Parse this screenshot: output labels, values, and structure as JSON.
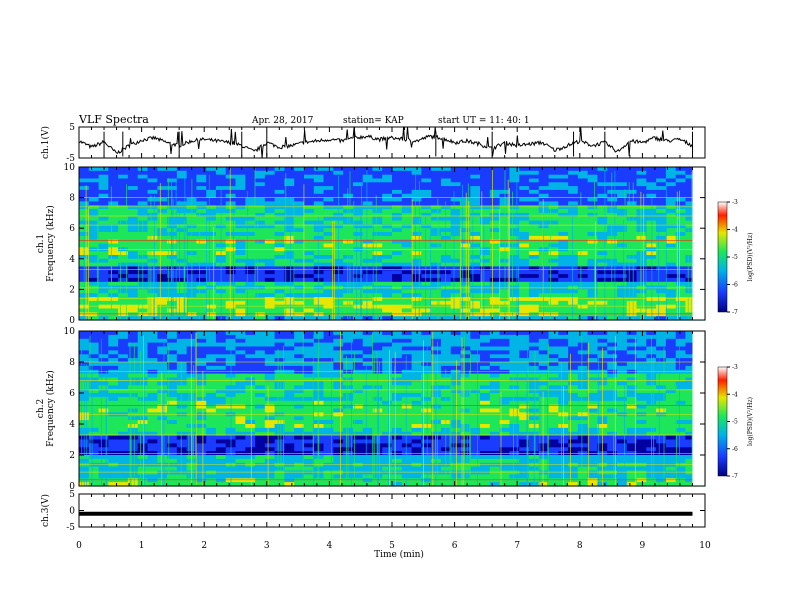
{
  "header": {
    "title": "VLF Spectra",
    "date": "Apr. 28, 2017",
    "station": "station= KAP",
    "start": "start UT = 11: 40: 1"
  },
  "chart_data": [
    {
      "type": "line",
      "panel": "ch1-waveform",
      "ylabel": "ch.1(V)",
      "ylim": [
        -5,
        5
      ],
      "yticks": [
        "5",
        "-5"
      ],
      "xlim": [
        0,
        10
      ],
      "x": [
        0.0,
        0.2,
        0.4,
        0.6,
        0.8,
        1.0,
        1.2,
        1.4,
        1.6,
        1.8,
        2.0,
        2.2,
        2.4,
        2.6,
        2.8,
        3.0,
        3.2,
        3.4,
        3.6,
        3.8,
        4.0,
        4.2,
        4.4,
        4.6,
        4.8,
        5.0,
        5.2,
        5.4,
        5.6,
        5.8,
        6.0,
        6.2,
        6.4,
        6.6,
        6.8,
        7.0,
        7.2,
        7.4,
        7.6,
        7.8,
        8.0,
        8.2,
        8.4,
        8.6,
        8.8,
        9.0,
        9.2,
        9.4,
        9.6,
        9.8
      ],
      "y": [
        0.5,
        -1.5,
        0.2,
        -3.5,
        -1.0,
        0.8,
        1.5,
        0.0,
        -1.0,
        0.5,
        1.0,
        0.5,
        0.0,
        -1.0,
        -3.0,
        0.0,
        -1.5,
        -1.0,
        0.0,
        0.5,
        1.0,
        0.5,
        1.5,
        2.0,
        1.0,
        1.5,
        1.0,
        0.5,
        2.0,
        1.5,
        0.0,
        0.5,
        -0.5,
        -2.0,
        0.0,
        -1.0,
        -0.5,
        0.0,
        -2.5,
        -1.0,
        0.5,
        -1.0,
        0.0,
        -3.0,
        0.5,
        0.0,
        1.5,
        0.5,
        1.0,
        -1.0
      ]
    },
    {
      "type": "heatmap",
      "panel": "ch1-spectrogram",
      "ylabel": "ch.1\nFrequency (kHz)",
      "ylim": [
        0,
        10
      ],
      "yticks": [
        "0",
        "2",
        "4",
        "6",
        "8",
        "10"
      ],
      "xlim": [
        0,
        10
      ],
      "colorbar": {
        "label": "log(PSD)(V²/Hz)",
        "range": [
          -7,
          -3
        ],
        "ticks": [
          "-3",
          "-4",
          "-5",
          "-6",
          "-7"
        ]
      }
    },
    {
      "type": "heatmap",
      "panel": "ch2-spectrogram",
      "ylabel": "ch.2\nFrequency (kHz)",
      "ylim": [
        0,
        10
      ],
      "yticks": [
        "0",
        "2",
        "4",
        "6",
        "8",
        "10"
      ],
      "xlim": [
        0,
        10
      ],
      "colorbar": {
        "label": "log(PSD)(V²/Hz)",
        "range": [
          -7,
          -3
        ],
        "ticks": [
          "-3",
          "-4",
          "-5",
          "-6",
          "-7"
        ]
      }
    },
    {
      "type": "line",
      "panel": "ch3-waveform",
      "ylabel": "ch.3(V)",
      "ylim": [
        -5,
        5
      ],
      "yticks": [
        "5",
        "0",
        "-5"
      ],
      "xlim": [
        0,
        10
      ],
      "x": [
        0,
        9.8
      ],
      "y": [
        -1,
        -1
      ]
    }
  ],
  "xaxis": {
    "label": "Time (min)",
    "ticks": [
      "0",
      "1",
      "2",
      "3",
      "4",
      "5",
      "6",
      "7",
      "8",
      "9",
      "10"
    ]
  },
  "colors": {
    "deep": "#0000a0",
    "blue": "#1a3cff",
    "cyan": "#00b4e6",
    "green": "#1ee65a",
    "yellow": "#e6e600",
    "red": "#ff2000"
  }
}
